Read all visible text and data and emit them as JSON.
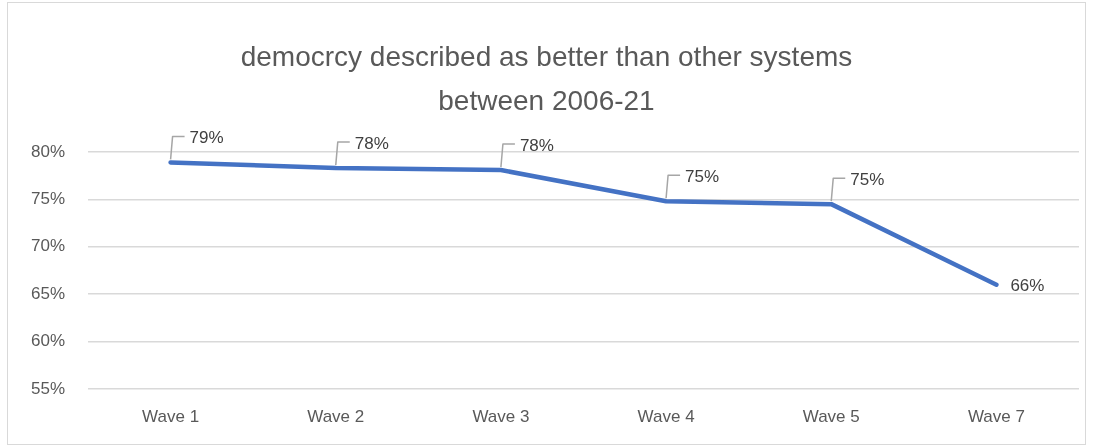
{
  "chart_data": {
    "type": "line",
    "title": "democrcy described as better than other systems between 2006-21",
    "categories": [
      "Wave 1",
      "Wave 2",
      "Wave 3",
      "Wave 4",
      "Wave 5",
      "Wave 7"
    ],
    "values": [
      78.9,
      78.3,
      78.1,
      74.8,
      74.5,
      66.0
    ],
    "color": "#4472c4",
    "value_labels": [
      "79%",
      "78%",
      "78%",
      "75%",
      "75%",
      "66%"
    ],
    "ylim": [
      55,
      80
    ],
    "yticks": [
      {
        "value": 55,
        "label": "55%"
      },
      {
        "value": 60,
        "label": "60%"
      },
      {
        "value": 65,
        "label": "65%"
      },
      {
        "value": 70,
        "label": "70%"
      },
      {
        "value": 75,
        "label": "75%"
      },
      {
        "value": 80,
        "label": "80%"
      }
    ],
    "grid": "y",
    "legend": false,
    "marker": "none",
    "line_style": "solid"
  }
}
